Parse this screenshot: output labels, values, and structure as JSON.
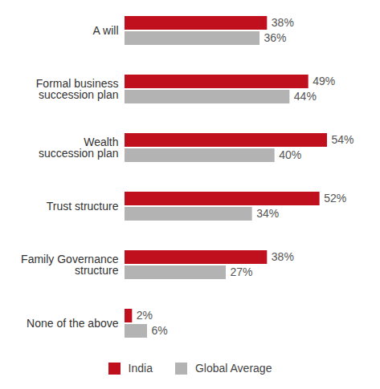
{
  "chart_data": {
    "type": "bar",
    "orientation": "horizontal",
    "categories": [
      "A will",
      "Formal business\nsuccession plan",
      "Wealth\nsuccession plan",
      "Trust structure",
      "Family Governance\nstructure",
      "None of the above"
    ],
    "series": [
      {
        "name": "India",
        "color": "#c0101e",
        "values": [
          38,
          49,
          54,
          52,
          38,
          2
        ],
        "value_labels": [
          "38%",
          "49%",
          "54%",
          "52%",
          "38%",
          "2%"
        ]
      },
      {
        "name": "Global Average",
        "color": "#b3b3b3",
        "values": [
          36,
          44,
          40,
          34,
          27,
          6
        ],
        "value_labels": [
          "36%",
          "44%",
          "40%",
          "34%",
          "27%",
          "6%"
        ]
      }
    ],
    "data_labels": true,
    "tick_labels": "y",
    "legend": "bottom",
    "grid": false
  }
}
